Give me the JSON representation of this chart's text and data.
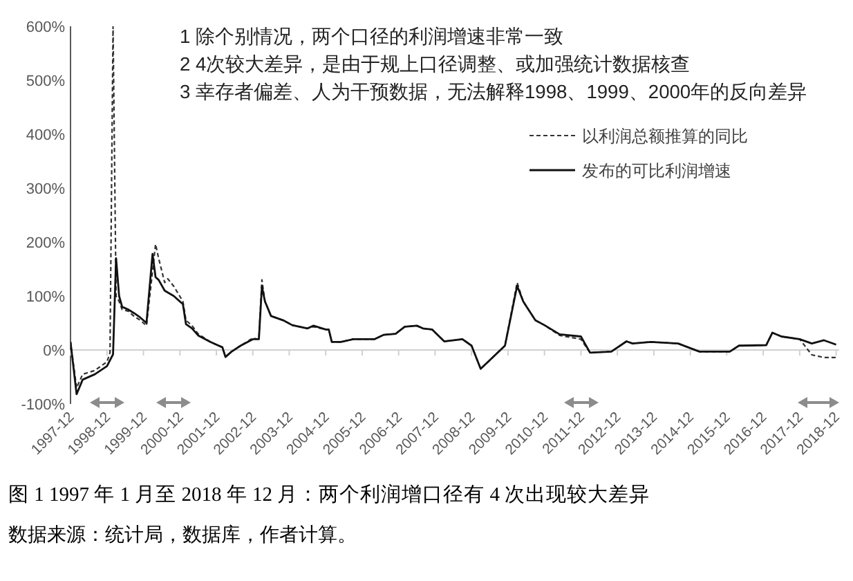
{
  "chart_data": {
    "type": "line",
    "title": "图 1 1997 年 1 月至 2018 年 12 月：两个利润增口径有 4 次出现较大差异",
    "annotations": [
      "1 除个别情况，两个口径的利润增速非常一致",
      "2 4次较大差异，是由于规上口径调整、或加强统计数据核查",
      "3 幸存者偏差、人为干预数据，无法解释1998、1999、2000年的反向差异",
      "数据来源：统计局，数据库，作者计算。"
    ],
    "xlim": [
      "1997-12",
      "2019-01"
    ],
    "xticks": [
      {
        "value": "1997-12",
        "label": "1997-12"
      },
      {
        "value": "1998-12",
        "label": "1998-12"
      },
      {
        "value": "1999-12",
        "label": "1999-12"
      },
      {
        "value": "2000-12",
        "label": "2000-12"
      },
      {
        "value": "2001-12",
        "label": "2001-12"
      },
      {
        "value": "2002-12",
        "label": "2002-12"
      },
      {
        "value": "2003-12",
        "label": "2003-12"
      },
      {
        "value": "2004-12",
        "label": "2004-12"
      },
      {
        "value": "2005-12",
        "label": "2005-12"
      },
      {
        "value": "2006-12",
        "label": "2006-12"
      },
      {
        "value": "2007-12",
        "label": "2007-12"
      },
      {
        "value": "2008-12",
        "label": "2008-12"
      },
      {
        "value": "2009-12",
        "label": "2009-12"
      },
      {
        "value": "2010-12",
        "label": "2010-12"
      },
      {
        "value": "2011-12",
        "label": "2011-12"
      },
      {
        "value": "2012-12",
        "label": "2012-12"
      },
      {
        "value": "2013-12",
        "label": "2013-12"
      },
      {
        "value": "2014-12",
        "label": "2014-12"
      },
      {
        "value": "2015-12",
        "label": "2015-12"
      },
      {
        "value": "2016-12",
        "label": "2016-12"
      },
      {
        "value": "2017-12",
        "label": "2017-12"
      },
      {
        "value": "2018-12",
        "label": "2018-12"
      }
    ],
    "ylim": [
      -100,
      600
    ],
    "yticks": [
      {
        "value": -100,
        "label": "-100%"
      },
      {
        "value": 0,
        "label": "0%"
      },
      {
        "value": 100,
        "label": "100%"
      },
      {
        "value": 200,
        "label": "200%"
      },
      {
        "value": 300,
        "label": "300%"
      },
      {
        "value": 400,
        "label": "400%"
      },
      {
        "value": 500,
        "label": "500%"
      },
      {
        "value": 600,
        "label": "600%"
      }
    ],
    "grid": false,
    "ref_lines": [
      {
        "axis": "y",
        "value": 0,
        "color": "#d0d0d0"
      }
    ],
    "legend": "top right",
    "marker": "none",
    "series": [
      {
        "name": "以利润总额推算的同比",
        "color": "#333333",
        "line_style": "dashed",
        "x": [
          "1997-12",
          "1998-02",
          "1998-04",
          "1998-08",
          "1998-12",
          "1999-01",
          "1999-02",
          "1999-03",
          "1999-04",
          "1999-05",
          "1999-07",
          "1999-09",
          "1999-11",
          "2000-01",
          "2000-04",
          "2000-05",
          "2000-07",
          "2000-08",
          "2000-10",
          "2001-01",
          "2001-02",
          "2001-04",
          "2001-06",
          "2001-10",
          "2001-12",
          "2002-02",
          "2002-03",
          "2002-05",
          "2002-08",
          "2002-12",
          "2003-02",
          "2003-03",
          "2003-04",
          "2003-06",
          "2003-10",
          "2004-01",
          "2004-06",
          "2004-08",
          "2004-12",
          "2005-01",
          "2005-02",
          "2005-05",
          "2005-09",
          "2006-04",
          "2006-07",
          "2006-11",
          "2007-02",
          "2007-06",
          "2007-08",
          "2007-11",
          "2008-03",
          "2008-09",
          "2008-12",
          "2009-03",
          "2009-11",
          "2010-03",
          "2010-05",
          "2010-09",
          "2010-12",
          "2011-05",
          "2011-12",
          "2012-03",
          "2012-10",
          "2013-03",
          "2013-05",
          "2013-11",
          "2014-08",
          "2015-03",
          "2016-01",
          "2016-04",
          "2017-01",
          "2017-03",
          "2017-06",
          "2017-12",
          "2018-04",
          "2018-08",
          "2018-12"
        ],
        "values": [
          15,
          -70,
          -45,
          -38,
          -22,
          -5,
          600,
          100,
          90,
          75,
          72,
          62,
          55,
          45,
          196,
          170,
          125,
          132,
          118,
          90,
          55,
          45,
          30,
          15,
          10,
          5,
          -13,
          -3,
          8,
          22,
          20,
          130,
          90,
          63,
          55,
          46,
          40,
          43,
          38,
          38,
          15,
          15,
          20,
          20,
          28,
          30,
          43,
          45,
          40,
          38,
          16,
          20,
          8,
          -35,
          8,
          125,
          90,
          55,
          46,
          27,
          20,
          -5,
          -3,
          16,
          12,
          15,
          12,
          -3,
          -3,
          8,
          9,
          32,
          25,
          20,
          -9,
          -14,
          -14
        ]
      },
      {
        "name": "发布的可比利润增速",
        "color": "#111111",
        "line_style": "solid",
        "x": [
          "1997-12",
          "1998-02",
          "1998-04",
          "1998-08",
          "1998-12",
          "1999-02",
          "1999-03",
          "1999-04",
          "1999-05",
          "1999-07",
          "1999-09",
          "1999-11",
          "2000-01",
          "2000-03",
          "2000-04",
          "2000-05",
          "2000-07",
          "2000-10",
          "2001-01",
          "2001-02",
          "2001-04",
          "2001-06",
          "2001-10",
          "2001-12",
          "2002-02",
          "2002-03",
          "2002-05",
          "2002-08",
          "2002-12",
          "2003-02",
          "2003-03",
          "2003-04",
          "2003-06",
          "2003-10",
          "2004-01",
          "2004-06",
          "2004-08",
          "2004-12",
          "2005-01",
          "2005-02",
          "2005-05",
          "2005-09",
          "2006-04",
          "2006-07",
          "2006-11",
          "2007-02",
          "2007-06",
          "2007-08",
          "2007-11",
          "2008-03",
          "2008-09",
          "2008-12",
          "2009-03",
          "2009-11",
          "2010-03",
          "2010-05",
          "2010-09",
          "2010-12",
          "2011-05",
          "2011-12",
          "2012-03",
          "2012-10",
          "2013-03",
          "2013-05",
          "2013-11",
          "2014-08",
          "2015-03",
          "2016-01",
          "2016-04",
          "2017-01",
          "2017-03",
          "2017-06",
          "2017-12",
          "2018-04",
          "2018-08",
          "2018-12"
        ],
        "values": [
          15,
          -82,
          -55,
          -45,
          -30,
          -8,
          170,
          100,
          80,
          75,
          68,
          60,
          50,
          178,
          135,
          130,
          110,
          100,
          85,
          48,
          40,
          27,
          15,
          10,
          5,
          -13,
          -3,
          8,
          20,
          20,
          118,
          90,
          63,
          55,
          46,
          40,
          45,
          38,
          38,
          15,
          15,
          20,
          20,
          28,
          30,
          43,
          45,
          40,
          38,
          16,
          20,
          8,
          -35,
          8,
          119,
          90,
          55,
          46,
          29,
          25,
          -5,
          -3,
          16,
          12,
          15,
          12,
          -3,
          -3,
          8,
          9,
          32,
          25,
          20,
          12,
          18,
          10
        ]
      }
    ]
  }
}
